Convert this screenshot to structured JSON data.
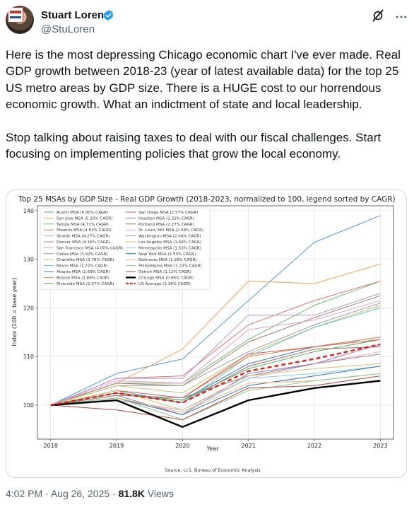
{
  "tweet": {
    "author_name": "Stuart Loren",
    "handle": "@StuLoren",
    "paragraph1": "Here is the most depressing Chicago economic chart I've ever made. Real GDP growth between 2018-23 (year of latest available data) for the top 25 US metro areas by GDP size. There is a HUGE cost to our horrendous economic growth. What an indictment of state and local leadership.",
    "paragraph2": "Stop talking about raising taxes to deal with our fiscal challenges. Start focusing on implementing policies that grow the local economy.",
    "time": "4:02 PM",
    "separator": "·",
    "date": "Aug 26, 2025",
    "views_count": "81.8K",
    "views_label": "Views",
    "icons": {
      "verified": "verified-badge-icon",
      "grok": "grok-icon",
      "more": "more-icon"
    },
    "colors": {
      "text": "#0f1419",
      "muted": "#536471",
      "verified": "#1d9bf0"
    }
  },
  "chart_data": {
    "type": "line",
    "title": "Top 25 MSAs by GDP Size - Real GDP Growth (2018-2023, normalized to 100, legend sorted by CAGR)",
    "xlabel": "Year",
    "ylabel": "Index (100 = base year)",
    "source": "Source: U.S. Bureau of Economic Analysis",
    "x": [
      2018,
      2019,
      2020,
      2021,
      2022,
      2023
    ],
    "xticks": [
      "2018",
      "2019",
      "2020",
      "2021",
      "2022",
      "2023"
    ],
    "yticks": [
      100,
      110,
      120,
      130,
      140
    ],
    "ylim": [
      93,
      141
    ],
    "grid": true,
    "legend_position": "top-left",
    "series": [
      {
        "name": "Austin MSA (6.80% CAGR)",
        "color": "#4c9bd6",
        "values": [
          100,
          106.5,
          109.5,
          121.5,
          133.5,
          139
        ]
      },
      {
        "name": "San Jose MSA (5.20% CAGR)",
        "color": "#f0a24e",
        "values": [
          100,
          104.5,
          111.5,
          125.5,
          125,
          129
        ]
      },
      {
        "name": "Tampa MSA (4.71% CAGR)",
        "color": "#6bbf6b",
        "values": [
          100,
          104.5,
          104.5,
          113.5,
          120.5,
          125.5
        ]
      },
      {
        "name": "Phoenix MSA (4.63% CAGR)",
        "color": "#e0706c",
        "values": [
          100,
          105.5,
          106,
          116.5,
          121.5,
          125.5
        ]
      },
      {
        "name": "Seattle MSA (4.27% CAGR)",
        "color": "#b192cf",
        "values": [
          100,
          105.5,
          105.5,
          118.5,
          118.5,
          123
        ]
      },
      {
        "name": "Denver MSA (4.16% CAGR)",
        "color": "#a47c6e",
        "values": [
          100,
          104.5,
          104,
          113,
          118,
          122.5
        ]
      },
      {
        "name": "San Francisco MSA (4.00% CAGR)",
        "color": "#ea9fce",
        "values": [
          100,
          105,
          104.5,
          115.5,
          117.5,
          121.5
        ]
      },
      {
        "name": "Dallas MSA (3.92% CAGR)",
        "color": "#9e9e9e",
        "values": [
          100,
          104,
          104,
          111,
          116.5,
          121
        ]
      },
      {
        "name": "Charlotte MSA (3.78% CAGR)",
        "color": "#c4c46a",
        "values": [
          100,
          104,
          102.5,
          110.5,
          116,
          120.5
        ]
      },
      {
        "name": "Miami MSA (3.72% CAGR)",
        "color": "#5cc7d6",
        "values": [
          100,
          103,
          100.5,
          110,
          116,
          120
        ]
      },
      {
        "name": "Atlanta MSA (2.69% CAGR)",
        "color": "#3a78b5",
        "values": [
          100,
          102.5,
          101,
          108.5,
          112,
          114
        ]
      },
      {
        "name": "Boston MSA (2.69% CAGR)",
        "color": "#e38d3c",
        "values": [
          100,
          102,
          101.5,
          110,
          112,
          114
        ]
      },
      {
        "name": "Riverside MSA (2.57% CAGR)",
        "color": "#4ea84e",
        "values": [
          100,
          102.5,
          101,
          107.5,
          111,
          113.5
        ]
      },
      {
        "name": "San Diego MSA (2.57% CAGR)",
        "color": "#d65a5a",
        "values": [
          100,
          103,
          101.5,
          110.5,
          112,
          113.5
        ]
      },
      {
        "name": "Houston MSA (2.32% CAGR)",
        "color": "#9878c2",
        "values": [
          100,
          102,
          98,
          106.5,
          108.5,
          112.5
        ]
      },
      {
        "name": "Portland MSA (2.27% CAGR)",
        "color": "#8c6a5c",
        "values": [
          100,
          102.5,
          100.5,
          108,
          111.5,
          112
        ]
      },
      {
        "name": "St. Louis, MO MSA (2.09% CAGR)",
        "color": "#e8a6d8",
        "values": [
          100,
          101,
          99,
          105.5,
          108.5,
          111
        ]
      },
      {
        "name": "Washington MSA (2.04% CAGR)",
        "color": "#8a8a8a",
        "values": [
          100,
          102,
          101.5,
          106,
          108.5,
          110.5
        ]
      },
      {
        "name": "Los Angeles MSA (1.64% CAGR)",
        "color": "#d4c46a",
        "values": [
          100,
          103,
          99,
          106,
          107.5,
          108.5
        ]
      },
      {
        "name": "Minneapolis MSA (1.53% CAGR)",
        "color": "#7fd0e0",
        "values": [
          100,
          101.5,
          98.5,
          105.5,
          106.5,
          108
        ]
      },
      {
        "name": "New York MSA (1.53% CAGR)",
        "color": "#2f6fad",
        "values": [
          100,
          101.5,
          98,
          104,
          106,
          108
        ]
      },
      {
        "name": "Baltimore MSA (1.28% CAGR)",
        "color": "#f2b36e",
        "values": [
          100,
          101.5,
          98.5,
          104.5,
          105,
          106.5
        ]
      },
      {
        "name": "Philadelphia MSA (1.23% CAGR)",
        "color": "#88c988",
        "values": [
          100,
          101.5,
          97,
          103,
          105,
          106.5
        ]
      },
      {
        "name": "Detroit MSA (1.12% CAGR)",
        "color": "#b5463f",
        "values": [
          100,
          99,
          97,
          103.5,
          104,
          106
        ]
      },
      {
        "name": "Chicago MSA (0.98% CAGR)",
        "color": "#000000",
        "values": [
          100,
          101,
          95.5,
          101,
          103.5,
          105
        ],
        "style": "bold"
      },
      {
        "name": "US Average (2.39% CAGR)",
        "color": "#e01e1e",
        "values": [
          100,
          102.5,
          100.5,
          107,
          109.5,
          112.5
        ],
        "style": "dashed"
      }
    ]
  }
}
